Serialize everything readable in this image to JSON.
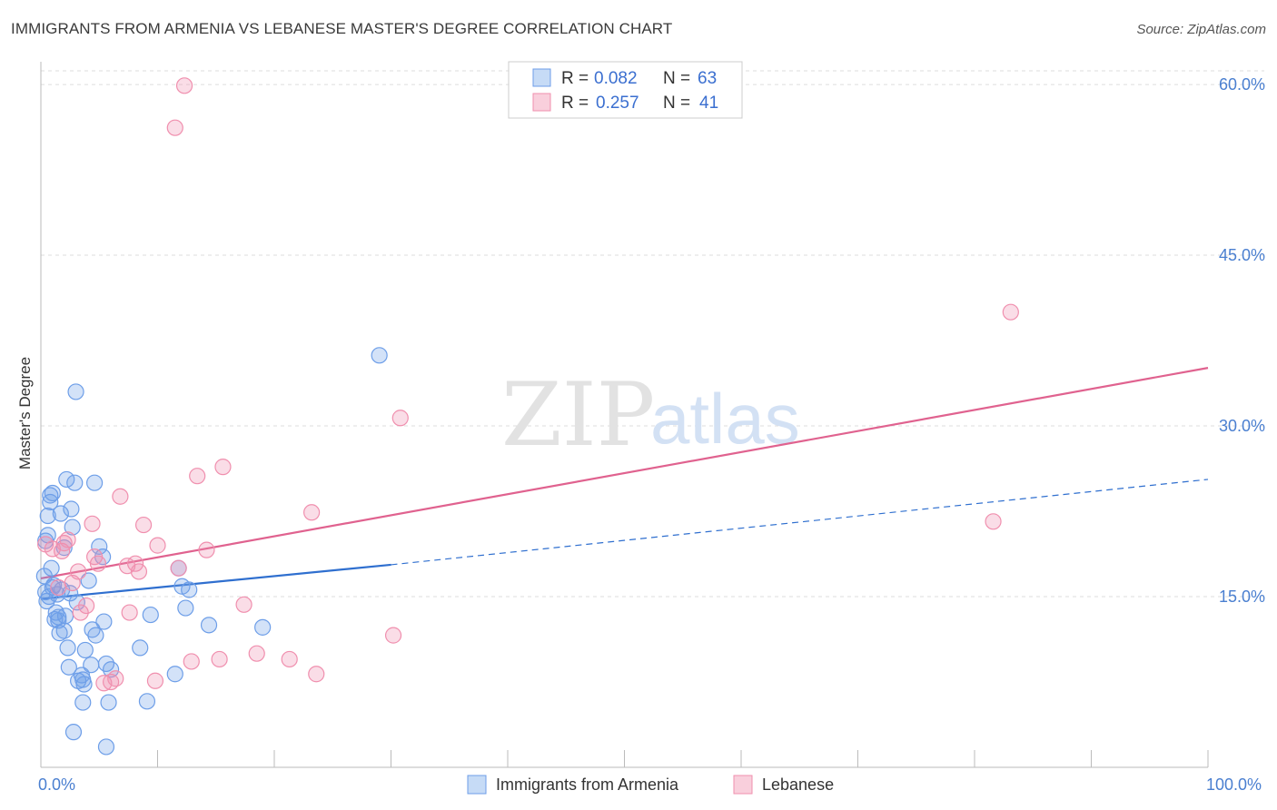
{
  "title": "IMMIGRANTS FROM ARMENIA VS LEBANESE MASTER'S DEGREE CORRELATION CHART",
  "source": "Source: ZipAtlas.com",
  "watermark": {
    "zip": "ZIP",
    "atlas": "atlas"
  },
  "legend": {
    "r_label": "R =",
    "n_label": "N =",
    "rows": [
      {
        "r": "0.082",
        "n": "63"
      },
      {
        "r": "0.257",
        "n": "41"
      }
    ]
  },
  "chart_data": {
    "type": "scatter",
    "title": "IMMIGRANTS FROM ARMENIA VS LEBANESE MASTER'S DEGREE CORRELATION CHART",
    "xlabel": "",
    "ylabel": "Master's Degree",
    "xlim": [
      0,
      100
    ],
    "ylim": [
      0,
      62
    ],
    "x_tick_labels": [
      "0.0%",
      "100.0%"
    ],
    "y_ticks": [
      15,
      30,
      45,
      60
    ],
    "y_tick_labels": [
      "15.0%",
      "30.0%",
      "45.0%",
      "60.0%"
    ],
    "grid": true,
    "series": [
      {
        "name": "Immigrants from Armenia",
        "color": "#6d9ee8",
        "line_color": "#2f6fcf",
        "trend": {
          "x0": 0,
          "y0": 14.8,
          "x1": 30,
          "y1": 17.8,
          "dash_to_x": 100,
          "dash_to_y": 25.3
        },
        "points": [
          [
            0.3,
            16.8
          ],
          [
            0.4,
            15.4
          ],
          [
            0.5,
            14.6
          ],
          [
            0.4,
            19.9
          ],
          [
            0.6,
            20.4
          ],
          [
            0.6,
            22.1
          ],
          [
            0.8,
            23.3
          ],
          [
            0.8,
            23.9
          ],
          [
            1.0,
            24.1
          ],
          [
            0.9,
            17.5
          ],
          [
            1.0,
            15.8
          ],
          [
            1.1,
            16.0
          ],
          [
            1.2,
            13.0
          ],
          [
            1.3,
            13.6
          ],
          [
            1.4,
            15.2
          ],
          [
            1.5,
            13.2
          ],
          [
            1.5,
            12.9
          ],
          [
            1.6,
            11.8
          ],
          [
            1.7,
            22.3
          ],
          [
            1.8,
            15.6
          ],
          [
            2.0,
            19.3
          ],
          [
            2.0,
            12.0
          ],
          [
            2.1,
            13.3
          ],
          [
            2.2,
            25.3
          ],
          [
            2.3,
            10.5
          ],
          [
            2.4,
            8.8
          ],
          [
            2.5,
            15.3
          ],
          [
            2.6,
            22.7
          ],
          [
            2.7,
            21.1
          ],
          [
            2.9,
            25.0
          ],
          [
            3.0,
            33.0
          ],
          [
            3.1,
            14.5
          ],
          [
            3.2,
            7.6
          ],
          [
            3.5,
            8.1
          ],
          [
            3.6,
            7.7
          ],
          [
            3.7,
            7.3
          ],
          [
            3.8,
            10.3
          ],
          [
            4.1,
            16.4
          ],
          [
            4.3,
            9.0
          ],
          [
            4.4,
            12.1
          ],
          [
            4.6,
            25.0
          ],
          [
            4.7,
            11.6
          ],
          [
            5.0,
            19.4
          ],
          [
            5.3,
            18.5
          ],
          [
            5.4,
            12.8
          ],
          [
            5.6,
            9.1
          ],
          [
            6.0,
            8.6
          ],
          [
            5.8,
            5.7
          ],
          [
            3.6,
            5.7
          ],
          [
            2.8,
            3.1
          ],
          [
            5.6,
            1.8
          ],
          [
            8.5,
            10.5
          ],
          [
            9.1,
            5.8
          ],
          [
            9.4,
            13.4
          ],
          [
            11.8,
            17.5
          ],
          [
            11.5,
            8.2
          ],
          [
            12.1,
            15.9
          ],
          [
            12.7,
            15.6
          ],
          [
            12.4,
            14.0
          ],
          [
            14.4,
            12.5
          ],
          [
            19.0,
            12.3
          ],
          [
            29.0,
            36.2
          ],
          [
            0.7,
            15.0
          ]
        ]
      },
      {
        "name": "Lebanese",
        "color": "#f08fae",
        "line_color": "#e0628f",
        "trend": {
          "x0": 0,
          "y0": 16.6,
          "x1": 100,
          "y1": 35.1
        },
        "points": [
          [
            0.4,
            19.6
          ],
          [
            1.0,
            19.2
          ],
          [
            1.5,
            15.8
          ],
          [
            1.8,
            19.0
          ],
          [
            2.0,
            19.7
          ],
          [
            2.3,
            20.0
          ],
          [
            2.7,
            16.2
          ],
          [
            3.2,
            17.2
          ],
          [
            3.4,
            13.6
          ],
          [
            3.9,
            14.2
          ],
          [
            4.4,
            21.4
          ],
          [
            4.6,
            18.5
          ],
          [
            4.9,
            17.9
          ],
          [
            5.4,
            7.4
          ],
          [
            6.0,
            7.5
          ],
          [
            6.4,
            7.8
          ],
          [
            6.8,
            23.8
          ],
          [
            7.4,
            17.7
          ],
          [
            7.6,
            13.6
          ],
          [
            8.1,
            17.9
          ],
          [
            8.4,
            17.2
          ],
          [
            8.8,
            21.3
          ],
          [
            9.8,
            7.6
          ],
          [
            10.0,
            19.5
          ],
          [
            11.5,
            56.2
          ],
          [
            11.8,
            17.5
          ],
          [
            12.3,
            59.9
          ],
          [
            12.9,
            9.3
          ],
          [
            13.4,
            25.6
          ],
          [
            14.2,
            19.1
          ],
          [
            15.3,
            9.5
          ],
          [
            15.6,
            26.4
          ],
          [
            17.4,
            14.3
          ],
          [
            18.5,
            10.0
          ],
          [
            21.3,
            9.5
          ],
          [
            23.2,
            22.4
          ],
          [
            23.6,
            8.2
          ],
          [
            30.2,
            11.6
          ],
          [
            30.8,
            30.7
          ],
          [
            81.6,
            21.6
          ],
          [
            83.1,
            40.0
          ]
        ]
      }
    ]
  }
}
